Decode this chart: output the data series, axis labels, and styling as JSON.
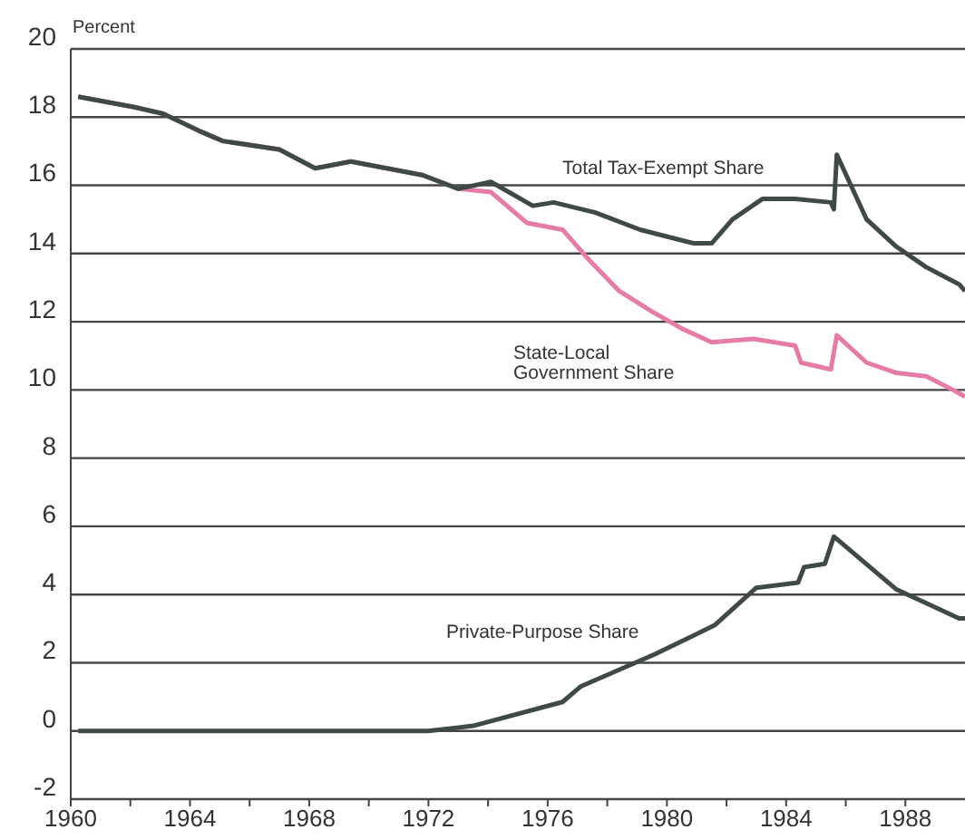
{
  "chart_data": {
    "type": "line",
    "ylabel": "Percent",
    "xlim": [
      1960,
      1990
    ],
    "xticks": [
      1960,
      {
        "value": 1962,
        "label": null
      },
      1964,
      {
        "value": 1966,
        "label": null
      },
      1968,
      {
        "value": 1970,
        "label": null
      },
      1972,
      {
        "value": 1974,
        "label": null
      },
      1976,
      {
        "value": 1978,
        "label": null
      },
      1980,
      {
        "value": 1982,
        "label": null
      },
      1984,
      {
        "value": 1986,
        "label": null
      },
      1988
    ],
    "ylim": [
      -2,
      20
    ],
    "yticks": [
      -2,
      0,
      2,
      4,
      6,
      8,
      10,
      12,
      14,
      16,
      18,
      20
    ],
    "grid": "y",
    "legend": false,
    "marker": "none",
    "line_style": "solid",
    "series": [
      {
        "name": "State-Local Government Share",
        "color": "#e57ca6",
        "x": [
          1960.25,
          1962.1,
          1963.1,
          1964.3,
          1965.1,
          1967,
          1968.2,
          1969.4,
          1971.8,
          1973,
          1974.1,
          1975.3,
          1976.5,
          1977.4,
          1978.4,
          1979.5,
          1980.5,
          1981.5,
          1982.9,
          1984.3,
          1984.5,
          1985.5,
          1985.7,
          1986.7,
          1987.7,
          1988.7,
          1989.6,
          1990
        ],
        "values": [
          18.6,
          18.3,
          18.1,
          17.6,
          17.3,
          17.05,
          16.5,
          16.7,
          16.3,
          15.9,
          15.8,
          14.9,
          14.7,
          13.8,
          12.9,
          12.3,
          11.8,
          11.4,
          11.5,
          11.3,
          10.8,
          10.6,
          11.6,
          10.8,
          10.5,
          10.4,
          10.0,
          9.8
        ]
      },
      {
        "name": "Total Tax-Exempt Share",
        "color": "#3f4a47",
        "x": [
          1960.25,
          1962.1,
          1963.1,
          1964.3,
          1965.1,
          1967,
          1968.2,
          1969.4,
          1971.8,
          1973,
          1974.1,
          1975.5,
          1976.2,
          1977.6,
          1979.1,
          1980.9,
          1981.5,
          1982.2,
          1983.2,
          1984.3,
          1985.5,
          1985.6,
          1985.7,
          1986.7,
          1987.7,
          1988.7,
          1989.8,
          1990
        ],
        "values": [
          18.6,
          18.3,
          18.1,
          17.6,
          17.3,
          17.05,
          16.5,
          16.7,
          16.3,
          15.9,
          16.1,
          15.4,
          15.5,
          15.2,
          14.7,
          14.3,
          14.3,
          15.0,
          15.6,
          15.6,
          15.5,
          15.3,
          16.9,
          15.0,
          14.2,
          13.6,
          13.1,
          12.9
        ]
      },
      {
        "name": "Private-Purpose Share",
        "color": "#3f4a47",
        "x": [
          1960.25,
          1972,
          1973.5,
          1976.5,
          1977.1,
          1979.6,
          1981.6,
          1983,
          1984.4,
          1984.6,
          1985.3,
          1985.6,
          1987.7,
          1989.8,
          1990
        ],
        "values": [
          0,
          0,
          0.15,
          0.85,
          1.3,
          2.25,
          3.1,
          4.2,
          4.35,
          4.8,
          4.9,
          5.7,
          4.15,
          3.3,
          3.3
        ]
      }
    ]
  }
}
